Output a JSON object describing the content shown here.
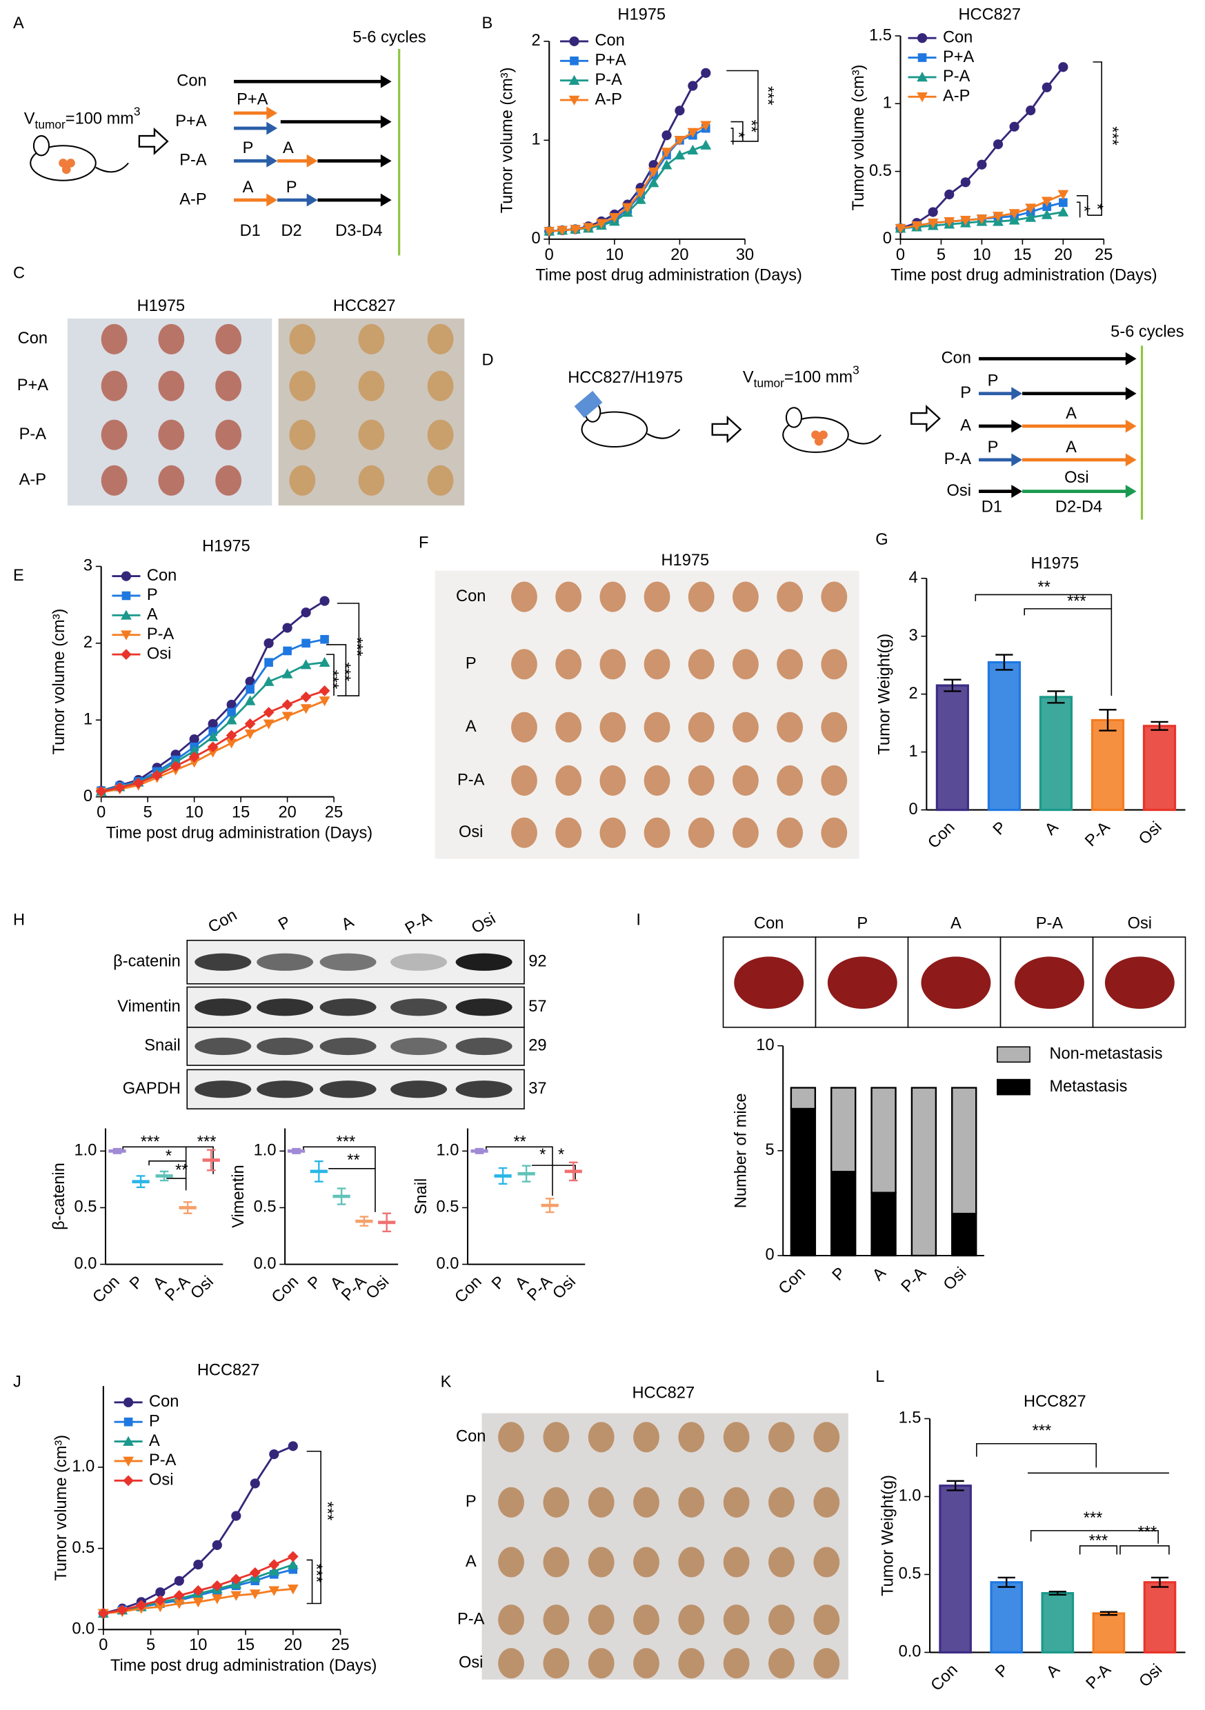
{
  "panel_letters": [
    "A",
    "B",
    "C",
    "D",
    "E",
    "F",
    "G",
    "H",
    "I",
    "J",
    "K",
    "L"
  ],
  "panel_a": {
    "cycles": "5-6 cycles",
    "v": "V",
    "v_sub": "tumor",
    "v_rest": "=100 mm",
    "v_sup": "3",
    "rows": [
      "Con",
      "P+A",
      "P-A",
      "A-P"
    ],
    "arrow_labels": [
      "P+A",
      "P",
      "A",
      "A",
      "P"
    ],
    "days": [
      "D1",
      "D2",
      "D3-D4"
    ]
  },
  "panel_c": {
    "titles": [
      "H1975",
      "HCC827"
    ],
    "rows": [
      "Con",
      "P+A",
      "P-A",
      "A-P"
    ]
  },
  "panel_d": {
    "model": "HCC827/H1975",
    "v": "V",
    "v_sub": "tumor",
    "v_rest": "=100 mm",
    "v_sup": "3",
    "cycles": "5-6 cycles",
    "rows": [
      "Con",
      "P",
      "A",
      "P-A",
      "Osi"
    ],
    "arrow_labels": [
      "P",
      "A",
      "P",
      "A",
      "Osi"
    ],
    "days": [
      "D1",
      "D2-D4"
    ]
  },
  "panel_f": {
    "title": "H1975",
    "rows": [
      "Con",
      "P",
      "A",
      "P-A",
      "Osi"
    ]
  },
  "panel_h": {
    "lanes": [
      "Con",
      "P",
      "A",
      "P-A",
      "Osi"
    ],
    "proteins": [
      "β-catenin",
      "Vimentin",
      "Snail",
      "GAPDH"
    ],
    "sizes": [
      92,
      57,
      29,
      37
    ]
  },
  "panel_i": {
    "lanes": [
      "Con",
      "P",
      "A",
      "P-A",
      "Osi"
    ]
  },
  "panel_k": {
    "title": "HCC827",
    "rows": [
      "Con",
      "P",
      "A",
      "P-A",
      "Osi"
    ]
  },
  "chart_data": [
    {
      "type": "line",
      "title": "H1975",
      "x_label": "Time post drug administration (Days)",
      "y_label": "Tumor volume (cm³)",
      "x": [
        0,
        2,
        4,
        6,
        8,
        10,
        12,
        14,
        16,
        18,
        20,
        22,
        24
      ],
      "series": [
        {
          "name": "Con",
          "color": "#35267a",
          "marker": "circle",
          "values": [
            0.08,
            0.09,
            0.1,
            0.13,
            0.18,
            0.25,
            0.35,
            0.52,
            0.75,
            1.05,
            1.3,
            1.55,
            1.68
          ]
        },
        {
          "name": "P+A",
          "color": "#1f78e0",
          "marker": "square",
          "values": [
            0.08,
            0.09,
            0.1,
            0.12,
            0.15,
            0.2,
            0.3,
            0.45,
            0.65,
            0.85,
            1.0,
            1.05,
            1.12
          ]
        },
        {
          "name": "P-A",
          "color": "#1b998b",
          "marker": "triangle",
          "values": [
            0.08,
            0.09,
            0.1,
            0.11,
            0.14,
            0.18,
            0.27,
            0.4,
            0.57,
            0.75,
            0.85,
            0.9,
            0.95
          ]
        },
        {
          "name": "A-P",
          "color": "#f47c20",
          "marker": "triangle-down",
          "values": [
            0.08,
            0.09,
            0.1,
            0.12,
            0.16,
            0.22,
            0.32,
            0.47,
            0.68,
            0.88,
            1.0,
            1.08,
            1.15
          ]
        }
      ],
      "xlim": [
        0,
        30
      ],
      "xticks": [
        0,
        10,
        20,
        30
      ],
      "ylim": [
        0,
        2
      ],
      "yticks": [
        0,
        1,
        2
      ],
      "annotations": [
        "***",
        "**",
        "*"
      ]
    },
    {
      "type": "line",
      "title": "HCC827",
      "x_label": "Time post drug administration (Days)",
      "y_label": "Tumor volume (cm³)",
      "x": [
        0,
        2,
        4,
        6,
        8,
        10,
        12,
        14,
        16,
        18,
        20
      ],
      "series": [
        {
          "name": "Con",
          "color": "#35267a",
          "marker": "circle",
          "values": [
            0.08,
            0.12,
            0.2,
            0.33,
            0.42,
            0.55,
            0.7,
            0.83,
            0.95,
            1.12,
            1.27
          ]
        },
        {
          "name": "P+A",
          "color": "#1f78e0",
          "marker": "square",
          "values": [
            0.08,
            0.1,
            0.12,
            0.13,
            0.14,
            0.15,
            0.16,
            0.17,
            0.2,
            0.24,
            0.27
          ]
        },
        {
          "name": "P-A",
          "color": "#1b998b",
          "marker": "triangle",
          "values": [
            0.08,
            0.09,
            0.1,
            0.11,
            0.12,
            0.13,
            0.13,
            0.14,
            0.16,
            0.18,
            0.2
          ]
        },
        {
          "name": "A-P",
          "color": "#f47c20",
          "marker": "triangle-down",
          "values": [
            0.08,
            0.1,
            0.12,
            0.13,
            0.14,
            0.15,
            0.17,
            0.19,
            0.23,
            0.28,
            0.33
          ]
        }
      ],
      "xlim": [
        0,
        25
      ],
      "xticks": [
        0,
        5,
        10,
        15,
        20,
        25
      ],
      "ylim": [
        0,
        1.5
      ],
      "yticks": [
        0,
        0.5,
        1,
        1.5
      ],
      "annotations": [
        "***",
        "*",
        "*"
      ]
    },
    {
      "type": "line",
      "title": "H1975",
      "x_label": "Time post drug administration (Days)",
      "y_label": "Tumor volume (cm³)",
      "x": [
        0,
        2,
        4,
        6,
        8,
        10,
        12,
        14,
        16,
        18,
        20,
        22,
        24
      ],
      "series": [
        {
          "name": "Con",
          "color": "#35267a",
          "marker": "circle",
          "values": [
            0.08,
            0.15,
            0.22,
            0.38,
            0.55,
            0.75,
            0.95,
            1.2,
            1.5,
            2.0,
            2.2,
            2.4,
            2.55
          ]
        },
        {
          "name": "P",
          "color": "#1f78e0",
          "marker": "square",
          "values": [
            0.08,
            0.14,
            0.2,
            0.33,
            0.48,
            0.65,
            0.85,
            1.1,
            1.4,
            1.75,
            1.9,
            2.0,
            2.05
          ]
        },
        {
          "name": "A",
          "color": "#1b998b",
          "marker": "triangle",
          "values": [
            0.07,
            0.13,
            0.19,
            0.3,
            0.45,
            0.6,
            0.78,
            1.0,
            1.25,
            1.5,
            1.6,
            1.72,
            1.75
          ]
        },
        {
          "name": "P-A",
          "color": "#f47c20",
          "marker": "triangle-down",
          "values": [
            0.06,
            0.1,
            0.15,
            0.25,
            0.35,
            0.45,
            0.58,
            0.7,
            0.82,
            0.95,
            1.05,
            1.15,
            1.25
          ]
        },
        {
          "name": "Osi",
          "color": "#e8342a",
          "marker": "diamond",
          "values": [
            0.07,
            0.12,
            0.18,
            0.28,
            0.4,
            0.52,
            0.65,
            0.8,
            0.95,
            1.1,
            1.2,
            1.3,
            1.38
          ]
        }
      ],
      "xlim": [
        0,
        25
      ],
      "xticks": [
        0,
        5,
        10,
        15,
        20,
        25
      ],
      "ylim": [
        0,
        3
      ],
      "yticks": [
        0,
        1,
        2,
        3
      ],
      "annotations": [
        "***",
        "***",
        "***"
      ]
    },
    {
      "type": "bar",
      "title": "H1975",
      "y_label": "Tumor Weight(g)",
      "categories": [
        "Con",
        "P",
        "A",
        "P-A",
        "Osi"
      ],
      "values": [
        2.15,
        2.55,
        1.95,
        1.55,
        1.45
      ],
      "errors": [
        0.1,
        0.13,
        0.1,
        0.18,
        0.07
      ],
      "colors": [
        "#3d2c85",
        "#1f78e0",
        "#1b998b",
        "#f47c20",
        "#e8342a"
      ],
      "ylim": [
        0,
        4
      ],
      "yticks": [
        0,
        1,
        2,
        3,
        4
      ],
      "annotations": [
        "**",
        "***"
      ]
    },
    {
      "type": "dot",
      "y_label": "β-catenin",
      "categories": [
        "Con",
        "P",
        "A",
        "P-A",
        "Osi"
      ],
      "values": [
        1.0,
        0.73,
        0.78,
        0.5,
        0.92
      ],
      "errors": [
        0.02,
        0.05,
        0.04,
        0.05,
        0.09
      ],
      "colors": [
        "#a08ad6",
        "#29b6e8",
        "#5fc2b8",
        "#f4a06a",
        "#f07070"
      ],
      "ylim": [
        0,
        1.2
      ],
      "yticks": [
        {
          "value": 0,
          "label": "0.0"
        },
        0.5,
        {
          "value": 1,
          "label": "1.0"
        }
      ],
      "annotations": [
        "***",
        "*",
        "**",
        "***"
      ]
    },
    {
      "type": "dot",
      "y_label": "Vimentin",
      "categories": [
        "Con",
        "P",
        "A",
        "P-A",
        "Osi"
      ],
      "values": [
        1.0,
        0.82,
        0.6,
        0.38,
        0.37
      ],
      "errors": [
        0.02,
        0.09,
        0.07,
        0.04,
        0.08
      ],
      "colors": [
        "#a08ad6",
        "#29b6e8",
        "#5fc2b8",
        "#f4a06a",
        "#f07070"
      ],
      "ylim": [
        0,
        1.2
      ],
      "yticks": [
        {
          "value": 0,
          "label": "0.0"
        },
        0.5,
        {
          "value": 1,
          "label": "1.0"
        }
      ],
      "annotations": [
        "***",
        "**"
      ]
    },
    {
      "type": "dot",
      "y_label": "Snail",
      "categories": [
        "Con",
        "P",
        "A",
        "P-A",
        "Osi"
      ],
      "values": [
        1.0,
        0.78,
        0.8,
        0.52,
        0.82
      ],
      "errors": [
        0.02,
        0.07,
        0.07,
        0.06,
        0.08
      ],
      "colors": [
        "#a08ad6",
        "#29b6e8",
        "#5fc2b8",
        "#f4a06a",
        "#f07070"
      ],
      "ylim": [
        0,
        1.2
      ],
      "yticks": [
        {
          "value": 0,
          "label": "0.0"
        },
        0.5,
        {
          "value": 1,
          "label": "1.0"
        }
      ],
      "annotations": [
        "**",
        "*",
        "*"
      ]
    },
    {
      "type": "stacked_bar",
      "y_label": "Number of mice",
      "categories": [
        "Con",
        "P",
        "A",
        "P-A",
        "Osi"
      ],
      "series": [
        {
          "name": "Metastasis",
          "color": "#000000",
          "values": [
            7,
            4,
            3,
            0,
            2
          ]
        },
        {
          "name": "Non-metastasis",
          "color": "#b3b3b3",
          "values": [
            1,
            4,
            5,
            8,
            6
          ]
        }
      ],
      "ylim": [
        0,
        10
      ],
      "yticks": [
        0,
        5,
        10
      ]
    },
    {
      "type": "line",
      "title": "HCC827",
      "x_label": "Time post drug administration (Days)",
      "y_label": "Tumor volume (cm³)",
      "x": [
        0,
        2,
        4,
        6,
        8,
        10,
        12,
        14,
        16,
        18,
        20
      ],
      "series": [
        {
          "name": "Con",
          "color": "#35267a",
          "marker": "circle",
          "values": [
            0.1,
            0.13,
            0.17,
            0.23,
            0.3,
            0.4,
            0.52,
            0.7,
            0.9,
            1.08,
            1.13
          ]
        },
        {
          "name": "P",
          "color": "#1f78e0",
          "marker": "square",
          "values": [
            0.1,
            0.12,
            0.14,
            0.16,
            0.18,
            0.21,
            0.24,
            0.27,
            0.3,
            0.34,
            0.37
          ]
        },
        {
          "name": "A",
          "color": "#1b998b",
          "marker": "triangle",
          "values": [
            0.1,
            0.12,
            0.14,
            0.17,
            0.19,
            0.22,
            0.25,
            0.28,
            0.32,
            0.36,
            0.4
          ]
        },
        {
          "name": "P-A",
          "color": "#f47c20",
          "marker": "triangle-down",
          "values": [
            0.1,
            0.11,
            0.13,
            0.14,
            0.16,
            0.17,
            0.19,
            0.21,
            0.22,
            0.24,
            0.25
          ]
        },
        {
          "name": "Osi",
          "color": "#e8342a",
          "marker": "diamond",
          "values": [
            0.1,
            0.12,
            0.15,
            0.18,
            0.21,
            0.24,
            0.27,
            0.31,
            0.35,
            0.4,
            0.45
          ]
        }
      ],
      "xlim": [
        0,
        25
      ],
      "xticks": [
        0,
        5,
        10,
        15,
        20,
        25
      ],
      "ylim": [
        0,
        1.5
      ],
      "yticks": [
        {
          "value": 0,
          "label": "0.0"
        },
        0.5,
        {
          "value": 1,
          "label": "1.0"
        }
      ],
      "annotations": [
        "***",
        "***"
      ]
    },
    {
      "type": "bar",
      "title": "HCC827",
      "y_label": "Tumor Weight(g)",
      "categories": [
        "Con",
        "P",
        "A",
        "P-A",
        "Osi"
      ],
      "values": [
        1.07,
        0.45,
        0.38,
        0.25,
        0.45
      ],
      "errors": [
        0.03,
        0.03,
        0.01,
        0.01,
        0.03
      ],
      "colors": [
        "#3d2c85",
        "#1f78e0",
        "#1b998b",
        "#f47c20",
        "#e8342a"
      ],
      "ylim": [
        0,
        1.5
      ],
      "yticks": [
        {
          "value": 0,
          "label": "0.0"
        },
        0.5,
        {
          "value": 1,
          "label": "1.0"
        },
        1.5
      ],
      "annotations": [
        "***",
        "***",
        "***",
        "***"
      ]
    }
  ]
}
